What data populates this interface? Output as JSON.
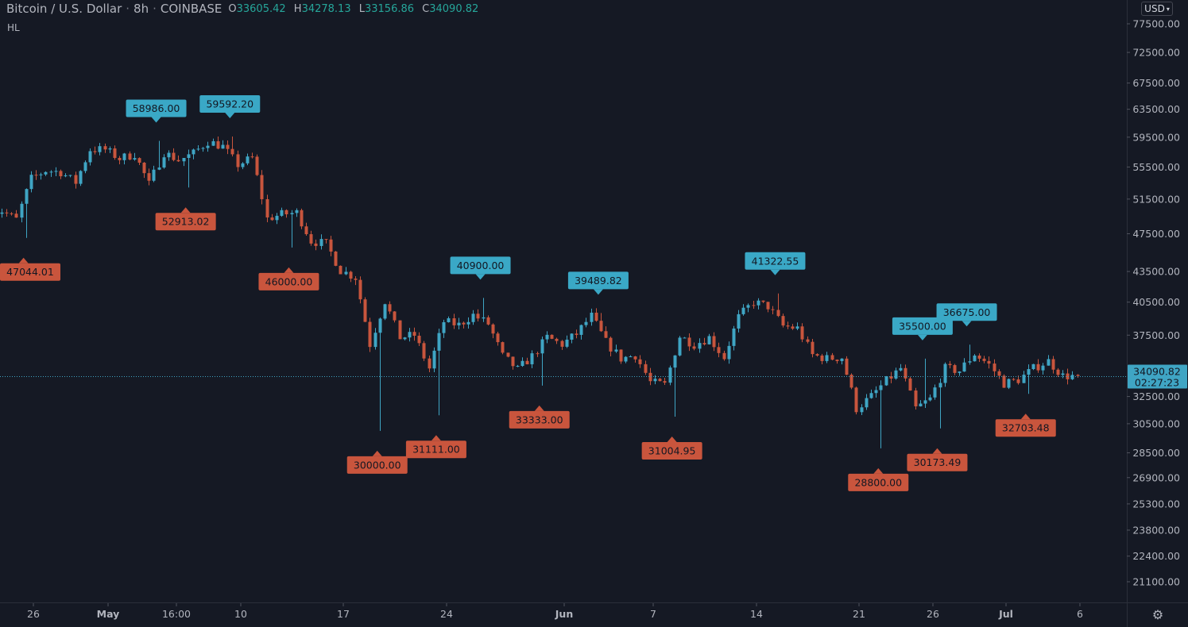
{
  "header": {
    "symbol": "Bitcoin / U.S. Dollar",
    "interval": "8h",
    "exchange": "COINBASE",
    "ohlc": [
      {
        "key": "O",
        "value": "33605.42"
      },
      {
        "key": "H",
        "value": "34278.13"
      },
      {
        "key": "L",
        "value": "33156.86"
      },
      {
        "key": "C",
        "value": "34090.82"
      }
    ],
    "indicator": "HL"
  },
  "currency": {
    "label": "USD"
  },
  "colors": {
    "background": "#151924",
    "up": "#3fa5c4",
    "down": "#c8553d",
    "axis_text": "#b2b5be",
    "high_label": "#3aa8c6",
    "low_label": "#c9553d"
  },
  "icons": {
    "settings": "gear-icon",
    "currency_dropdown": "chevron-down-icon"
  },
  "chart_data": {
    "type": "candlestick",
    "y_scale": "log",
    "ylim": [
      20400,
      80000
    ],
    "y_ticks": [
      "77500.00",
      "72500.00",
      "67500.00",
      "63500.00",
      "59500.00",
      "55500.00",
      "51500.00",
      "47500.00",
      "43500.00",
      "40500.00",
      "37500.00",
      "32500.00",
      "30500.00",
      "28500.00",
      "26900.00",
      "25300.00",
      "23800.00",
      "22400.00",
      "21100.00"
    ],
    "x_ticks": [
      "26",
      "May",
      "16:00",
      "10",
      "17",
      "24",
      "Jun",
      "7",
      "14",
      "21",
      "26",
      "Jul",
      "6"
    ],
    "x_ticks_bold": [
      "May",
      "Jun",
      "Jul"
    ],
    "last_price": {
      "value": 34090.82,
      "label": "34090.82",
      "countdown": "02:27:23"
    },
    "swing_highs": [
      {
        "date": "2021-05-04",
        "value": "58986.00"
      },
      {
        "date": "2021-05-09",
        "value": "59592.20"
      },
      {
        "date": "2021-05-26",
        "value": "40900.00"
      },
      {
        "date": "2021-06-03",
        "value": "39489.82"
      },
      {
        "date": "2021-06-15",
        "value": "41322.55"
      },
      {
        "date": "2021-06-25",
        "value": "35500.00"
      },
      {
        "date": "2021-06-28",
        "value": "36675.00"
      }
    ],
    "swing_lows": [
      {
        "date": "2021-04-25",
        "value": "47044.01"
      },
      {
        "date": "2021-05-06",
        "value": "52913.02"
      },
      {
        "date": "2021-05-13",
        "value": "46000.00"
      },
      {
        "date": "2021-05-19",
        "value": "30000.00"
      },
      {
        "date": "2021-05-23",
        "value": "31111.00"
      },
      {
        "date": "2021-05-30",
        "value": "33333.00"
      },
      {
        "date": "2021-06-08",
        "value": "31004.95"
      },
      {
        "date": "2021-06-22",
        "value": "28800.00"
      },
      {
        "date": "2021-06-26",
        "value": "30173.49"
      },
      {
        "date": "2021-07-02",
        "value": "32703.48"
      }
    ],
    "daily_closes": [
      [
        "2021-04-23",
        50050
      ],
      [
        "2021-04-24",
        50100
      ],
      [
        "2021-04-25",
        49100
      ],
      [
        "2021-04-26",
        54000
      ],
      [
        "2021-04-27",
        55050
      ],
      [
        "2021-04-28",
        54850
      ],
      [
        "2021-04-29",
        53550
      ],
      [
        "2021-04-30",
        57800
      ],
      [
        "2021-05-01",
        57800
      ],
      [
        "2021-05-02",
        56600
      ],
      [
        "2021-05-03",
        57200
      ],
      [
        "2021-05-04",
        53300
      ],
      [
        "2021-05-05",
        57400
      ],
      [
        "2021-05-06",
        56400
      ],
      [
        "2021-05-07",
        57300
      ],
      [
        "2021-05-08",
        58900
      ],
      [
        "2021-05-09",
        58200
      ],
      [
        "2021-05-10",
        55800
      ],
      [
        "2021-05-11",
        56700
      ],
      [
        "2021-05-12",
        49200
      ],
      [
        "2021-05-13",
        49700
      ],
      [
        "2021-05-14",
        49900
      ],
      [
        "2021-05-15",
        46700
      ],
      [
        "2021-05-16",
        46400
      ],
      [
        "2021-05-17",
        43600
      ],
      [
        "2021-05-18",
        42900
      ],
      [
        "2021-05-19",
        36700
      ],
      [
        "2021-05-20",
        40600
      ],
      [
        "2021-05-21",
        37300
      ],
      [
        "2021-05-22",
        37500
      ],
      [
        "2021-05-23",
        34700
      ],
      [
        "2021-05-24",
        38700
      ],
      [
        "2021-05-25",
        38400
      ],
      [
        "2021-05-26",
        39300
      ],
      [
        "2021-05-27",
        38500
      ],
      [
        "2021-05-28",
        35700
      ],
      [
        "2021-05-29",
        34600
      ],
      [
        "2021-05-30",
        35700
      ],
      [
        "2021-05-31",
        37300
      ],
      [
        "2021-06-01",
        36700
      ],
      [
        "2021-06-02",
        37600
      ],
      [
        "2021-06-03",
        39200
      ],
      [
        "2021-06-04",
        36900
      ],
      [
        "2021-06-05",
        35500
      ],
      [
        "2021-06-06",
        35800
      ],
      [
        "2021-06-07",
        33600
      ],
      [
        "2021-06-08",
        33400
      ],
      [
        "2021-06-09",
        37400
      ],
      [
        "2021-06-10",
        36700
      ],
      [
        "2021-06-11",
        37300
      ],
      [
        "2021-06-12",
        35600
      ],
      [
        "2021-06-13",
        39100
      ],
      [
        "2021-06-14",
        40500
      ],
      [
        "2021-06-15",
        40100
      ],
      [
        "2021-06-16",
        38300
      ],
      [
        "2021-06-17",
        38100
      ],
      [
        "2021-06-18",
        35800
      ],
      [
        "2021-06-19",
        35500
      ],
      [
        "2021-06-20",
        35600
      ],
      [
        "2021-06-21",
        31600
      ],
      [
        "2021-06-22",
        32500
      ],
      [
        "2021-06-23",
        33700
      ],
      [
        "2021-06-24",
        34700
      ],
      [
        "2021-06-25",
        31600
      ],
      [
        "2021-06-26",
        32300
      ],
      [
        "2021-06-27",
        34700
      ],
      [
        "2021-06-28",
        34500
      ],
      [
        "2021-06-29",
        35900
      ],
      [
        "2021-06-30",
        35000
      ],
      [
        "2021-07-01",
        33500
      ],
      [
        "2021-07-02",
        33800
      ],
      [
        "2021-07-03",
        34700
      ],
      [
        "2021-07-04",
        35300
      ],
      [
        "2021-07-05",
        34090.82
      ]
    ]
  }
}
